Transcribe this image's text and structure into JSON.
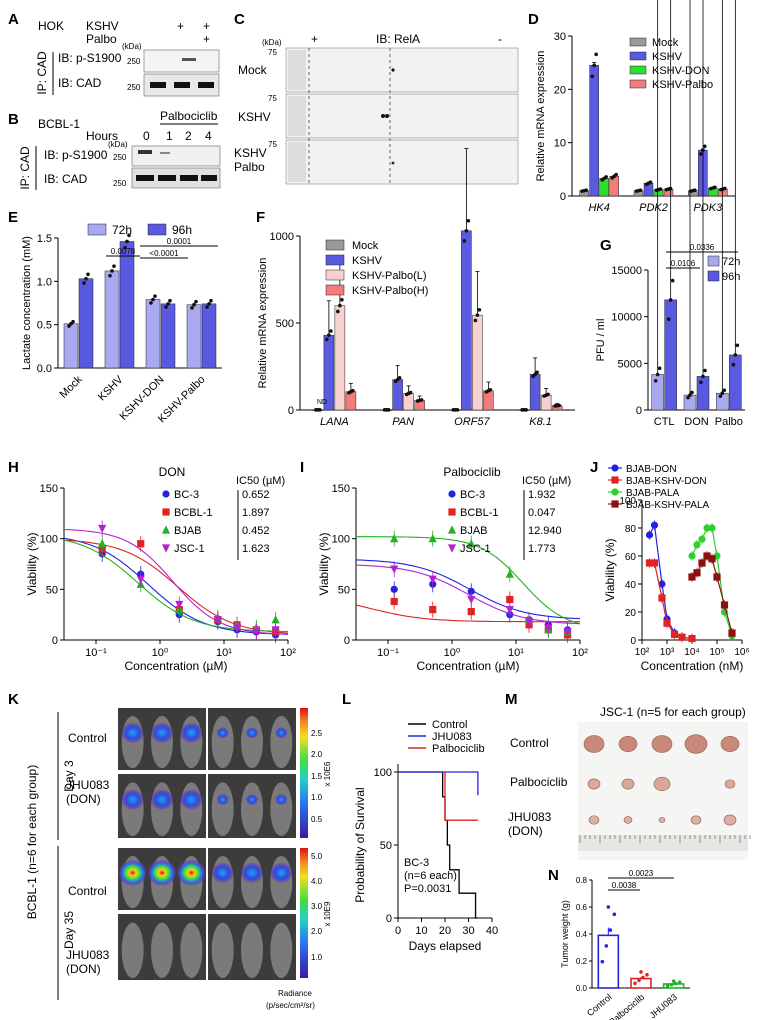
{
  "panels": {
    "a": {
      "label": "A",
      "cell": "HOK",
      "row1": "KSHV",
      "row2": "Palbo",
      "kda": "(kDa)",
      "m250a": "250",
      "m250b": "250",
      "ip": "IP: CAD",
      "ib1": "IB: p-S1900",
      "ib2": "IB: CAD",
      "marks": [
        "+",
        "+",
        "+"
      ]
    },
    "b": {
      "label": "B",
      "cell": "BCBL-1",
      "drug": "Palbociclib",
      "hours": "Hours",
      "times": [
        "0",
        "1",
        "2",
        "4"
      ],
      "kda": "(kDa)",
      "m250a": "250",
      "m250b": "250",
      "ip": "IP: CAD",
      "ib1": "IB: p-S1900",
      "ib2": "IB: CAD"
    },
    "c": {
      "label": "C",
      "kda": "(kDa)",
      "plus": "+",
      "ib": "IB: RelA",
      "minus": "-",
      "rows": [
        "Mock",
        "KSHV",
        "KSHV Palbo"
      ],
      "m75": "75"
    },
    "e": {
      "label": "E"
    },
    "g": {
      "label": "G"
    },
    "k": {
      "label": "K",
      "ylab": "BCBL-1 (n=6 for each group)",
      "day3": "Day 3",
      "day35": "Day 35",
      "control": "Control",
      "treat": "JHU083 (DON)",
      "scale1": "x 10E6",
      "scale2": "x 10E9",
      "ticks1": [
        "2.5",
        "2.0",
        "1.5",
        "1.0",
        "0.5"
      ],
      "ticks2": [
        "5.0",
        "4.0",
        "3.0",
        "2.0",
        "1.0"
      ],
      "radiance": "Radiance",
      "units": "(p/sec/cm²/sr)"
    },
    "m": {
      "label": "M",
      "title": "JSC-1 (n=5 for each group)",
      "rows": [
        "Control",
        "Palbociclib",
        "JHU083 (DON)"
      ]
    }
  },
  "chart_data": [
    {
      "id": "D",
      "type": "bar",
      "ylabel": "Relative mRNA expression",
      "ylim": [
        0,
        30
      ],
      "yticks": [
        0,
        10,
        20,
        30
      ],
      "categories": [
        "HK4",
        "PDK2",
        "PDK3"
      ],
      "series": [
        {
          "name": "Mock",
          "color": "#9a9a9a",
          "values": [
            1.0,
            1.0,
            1.0
          ]
        },
        {
          "name": "KSHV",
          "color": "#5a5ae0",
          "values": [
            24.5,
            2.4,
            8.6
          ]
        },
        {
          "name": "KSHV-DON",
          "color": "#2ede2e",
          "values": [
            3.3,
            1.2,
            1.5
          ]
        },
        {
          "name": "KSHV-Palbo",
          "color": "#f27c7c",
          "values": [
            3.7,
            1.3,
            1.3
          ]
        }
      ]
    },
    {
      "id": "E",
      "type": "bar",
      "ylabel": "Lactate concentration (mM)",
      "ylim": [
        0,
        1.5
      ],
      "yticks": [
        "0.0",
        "0.5",
        "1.0",
        "1.5"
      ],
      "categories": [
        "Mock",
        "KSHV",
        "KSHV-DON",
        "KSHV-Palbo"
      ],
      "series": [
        {
          "name": "72h",
          "color": "#a9a9f0",
          "values": [
            0.51,
            1.12,
            0.79,
            0.73
          ]
        },
        {
          "name": "96h",
          "color": "#5a5ae0",
          "values": [
            1.03,
            1.46,
            0.74,
            0.74
          ]
        }
      ],
      "pvalues": [
        "0.0078",
        "0.0001",
        "<0.0001"
      ]
    },
    {
      "id": "F",
      "type": "bar",
      "ylabel": "Relative mRNA expression",
      "ylim": [
        0,
        1000
      ],
      "yticks": [
        0,
        500,
        1000
      ],
      "categories": [
        "LANA",
        "PAN",
        "ORF57",
        "K8.1"
      ],
      "nd_label": "ND",
      "series": [
        {
          "name": "Mock",
          "color": "#9a9a9a",
          "values": [
            1,
            1,
            1,
            1
          ]
        },
        {
          "name": "KSHV",
          "color": "#5a5ae0",
          "values": [
            430,
            175,
            1030,
            205
          ]
        },
        {
          "name": "KSHV-Palbo(L)",
          "color": "#f7d0d0",
          "values": [
            600,
            95,
            545,
            85
          ]
        },
        {
          "name": "KSHV-Palbo(H)",
          "color": "#f27c7c",
          "values": [
            105,
            55,
            110,
            25
          ]
        }
      ]
    },
    {
      "id": "G",
      "type": "bar",
      "ylabel": "PFU / ml",
      "ylim": [
        0,
        15000
      ],
      "yticks": [
        0,
        5000,
        10000,
        15000
      ],
      "categories": [
        "CTL",
        "DON",
        "Palbo"
      ],
      "series": [
        {
          "name": "72h",
          "color": "#a9a9f0",
          "values": [
            3800,
            1600,
            1800
          ]
        },
        {
          "name": "96h",
          "color": "#5a5ae0",
          "values": [
            11800,
            3600,
            5900
          ]
        }
      ],
      "pvalues": [
        "0.0336",
        "0.0106"
      ]
    },
    {
      "id": "H",
      "type": "line",
      "title": "DON",
      "xlabel": "Concentration (µM)",
      "ylabel": "Viability (%)",
      "ylim": [
        0,
        150
      ],
      "yticks": [
        0,
        50,
        100,
        150
      ],
      "xticks": [
        "10⁻¹",
        "10⁰",
        "10¹",
        "10²"
      ],
      "ic50_header": "IC50 (µM)",
      "series": [
        {
          "name": "BC-3",
          "color": "#2323e0",
          "marker": "circle",
          "ic50": "0.652"
        },
        {
          "name": "BCBL-1",
          "color": "#e02323",
          "marker": "square",
          "ic50": "1.897"
        },
        {
          "name": "BJAB",
          "color": "#23b023",
          "marker": "triangle",
          "ic50": "0.452"
        },
        {
          "name": "JSC-1",
          "color": "#b323d0",
          "marker": "triangle-down",
          "ic50": "1.623"
        }
      ]
    },
    {
      "id": "I",
      "type": "line",
      "title": "Palbociclib",
      "xlabel": "Concentration (µM)",
      "ylabel": "Viability (%)",
      "ylim": [
        0,
        150
      ],
      "yticks": [
        0,
        50,
        100,
        150
      ],
      "xticks": [
        "10⁻¹",
        "10⁰",
        "10¹",
        "10²"
      ],
      "ic50_header": "IC50 (µM)",
      "series": [
        {
          "name": "BC-3",
          "color": "#2323e0",
          "marker": "circle",
          "ic50": "1.932"
        },
        {
          "name": "BCBL-1",
          "color": "#e02323",
          "marker": "square",
          "ic50": "0.047"
        },
        {
          "name": "BJAB",
          "color": "#23b023",
          "marker": "triangle",
          "ic50": "12.940"
        },
        {
          "name": "JSC-1",
          "color": "#b323d0",
          "marker": "triangle-down",
          "ic50": "1.773"
        }
      ]
    },
    {
      "id": "J",
      "type": "line",
      "xlabel": "Concentration (nM)",
      "ylabel": "Viability (%)",
      "ylim": [
        0,
        100
      ],
      "yticks": [
        0,
        20,
        40,
        60,
        80,
        100
      ],
      "xticks": [
        "10²",
        "10⁴",
        "10⁶"
      ],
      "xticks_minor": [
        "10³",
        "10⁵"
      ],
      "series": [
        {
          "name": "BJAB-DON",
          "color": "#2323e0",
          "marker": "circle"
        },
        {
          "name": "BJAB-KSHV-DON",
          "color": "#e02323",
          "marker": "square"
        },
        {
          "name": "BJAB-PALA",
          "color": "#2ed02e",
          "marker": "circle"
        },
        {
          "name": "BJAB-KSHV-PALA",
          "color": "#8b1010",
          "marker": "square"
        }
      ]
    },
    {
      "id": "L",
      "type": "line",
      "xlabel": "Days elapsed",
      "ylabel": "Probability of Survival",
      "ylim": [
        0,
        100
      ],
      "yticks": [
        0,
        50,
        100
      ],
      "xticks": [
        0,
        10,
        20,
        30,
        40
      ],
      "series": [
        {
          "name": "Control",
          "color": "#000000"
        },
        {
          "name": "JHU083",
          "color": "#2323e0"
        },
        {
          "name": "Palbociclib",
          "color": "#e02323"
        }
      ],
      "annotation": [
        "BC-3",
        "(n=6 each)",
        "P=0.0031"
      ]
    },
    {
      "id": "N",
      "type": "bar",
      "ylabel": "Tumor weight (g)",
      "ylim": [
        0,
        0.8
      ],
      "yticks": [
        "0.0",
        "0.2",
        "0.4",
        "0.6",
        "0.8"
      ],
      "categories": [
        "Control",
        "Palbociclib",
        "JHU083"
      ],
      "values": [
        0.39,
        0.07,
        0.03
      ],
      "colors": [
        "#2323e0",
        "#e02323",
        "#23b023"
      ],
      "pvalues": [
        "0.0038",
        "0.0023"
      ]
    }
  ]
}
